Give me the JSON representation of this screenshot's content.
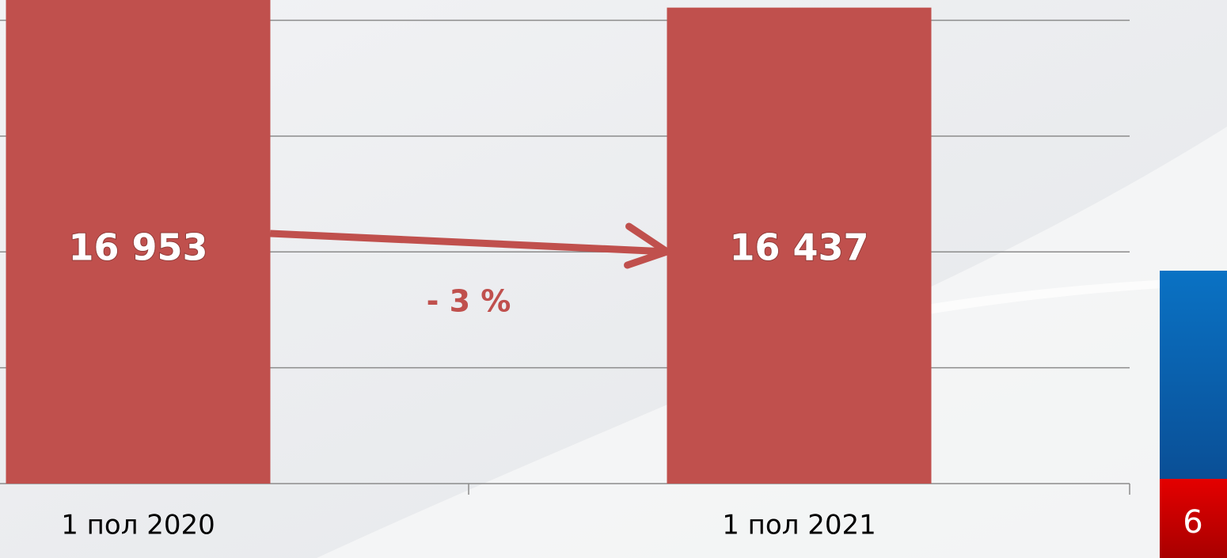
{
  "chart_data": {
    "type": "bar",
    "categories": [
      "1 пол 2020",
      "1 пол 2021"
    ],
    "values": [
      16953,
      16437
    ],
    "value_labels": [
      "16 953",
      "16 437"
    ],
    "color": "#c0504d",
    "ylim": [
      0,
      16700
    ],
    "yticks": [
      0,
      4000,
      8000,
      12000,
      16000
    ],
    "grid": true,
    "annotation": "- 3 %"
  },
  "page_number": "6"
}
